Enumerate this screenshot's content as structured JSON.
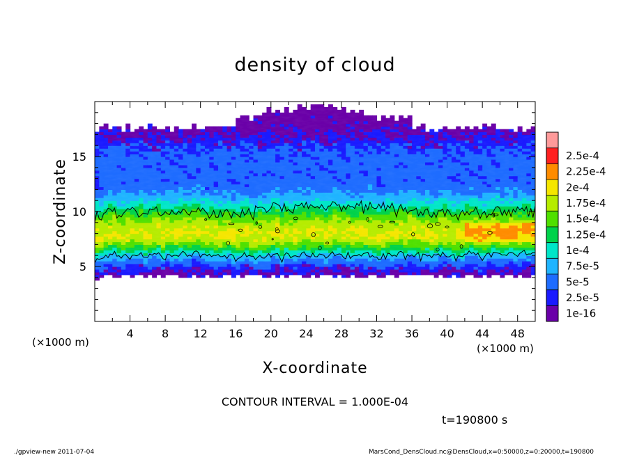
{
  "chart_data": {
    "type": "heatmap",
    "title": "density of cloud",
    "xlabel": "X-coordinate",
    "ylabel": "Z-coordinate",
    "x_unit": "(×1000 m)",
    "y_unit": "(×1000 m)",
    "xlim": [
      0,
      50
    ],
    "ylim": [
      0,
      20
    ],
    "x_ticks": [
      "4",
      "8",
      "12",
      "16",
      "20",
      "24",
      "28",
      "32",
      "36",
      "40",
      "44",
      "48"
    ],
    "y_ticks": [
      "5",
      "10",
      "15"
    ],
    "colorbar": {
      "labels": [
        "1e-16",
        "2.5e-5",
        "5e-5",
        "7.5e-5",
        "1e-4",
        "1.25e-4",
        "1.5e-4",
        "1.75e-4",
        "2e-4",
        "2.25e-4",
        "2.5e-4"
      ],
      "colors": [
        "#6a00a8",
        "#1a1aff",
        "#1e6cff",
        "#1fb4ff",
        "#00e6c8",
        "#00d24a",
        "#4fe000",
        "#b6ec00",
        "#f5e600",
        "#ff8c00",
        "#ff2020",
        "#ff9a9a"
      ]
    },
    "contour_interval": "CONTOUR INTERVAL = 1.000E-04",
    "contour_level": 0.0001,
    "time_label": "t=190800 s",
    "field_description": "cloud layer between z≈4 and z≈17.5 (×1000 m); maximum density ≈1.5e-4–2e-4 near z≈8; contour at 1e-4 bounds z≈6 to z≈10"
  },
  "footer": {
    "left": "./gpview-new   2011-07-04",
    "right": "MarsCond_DensCloud.nc@DensCloud,x=0:50000,z=0:20000,t=190800"
  }
}
